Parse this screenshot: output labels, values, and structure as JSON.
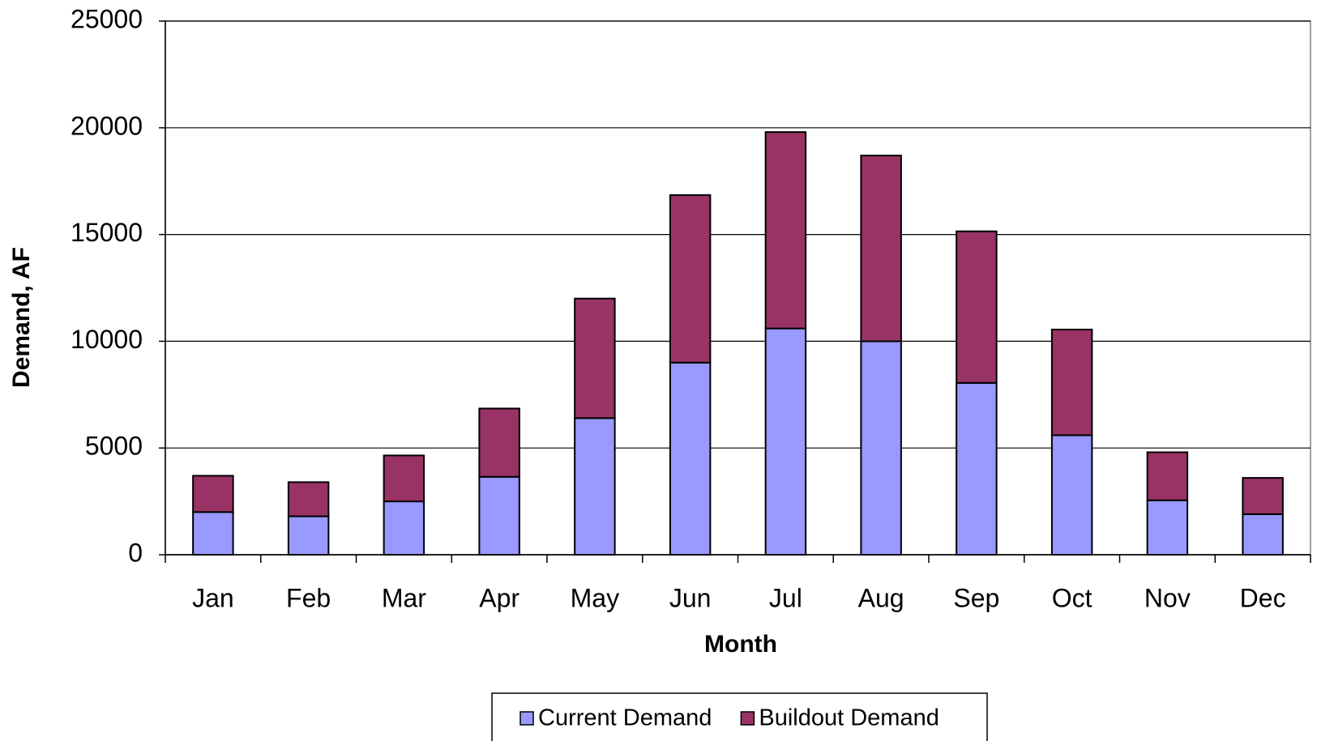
{
  "chart_data": {
    "type": "stacked_bar",
    "x_label": "Month",
    "y_label": "Demand, AF",
    "categories": [
      "Jan",
      "Feb",
      "Mar",
      "Apr",
      "May",
      "Jun",
      "Jul",
      "Aug",
      "Sep",
      "Oct",
      "Nov",
      "Dec"
    ],
    "series": [
      {
        "name": "Current Demand",
        "color": "#9999ff",
        "values": [
          2000,
          1800,
          2500,
          3650,
          6400,
          9000,
          10600,
          10000,
          8050,
          5600,
          2550,
          1900
        ]
      },
      {
        "name": "Buildout Demand",
        "color": "#993366",
        "values": [
          1700,
          1600,
          2150,
          3200,
          5600,
          7850,
          9200,
          8700,
          7100,
          4950,
          2250,
          1700
        ]
      }
    ],
    "ylim": [
      0,
      25000
    ],
    "yticks": [
      0,
      5000,
      10000,
      15000,
      20000,
      25000
    ],
    "grid": true,
    "legend": "bottom"
  }
}
